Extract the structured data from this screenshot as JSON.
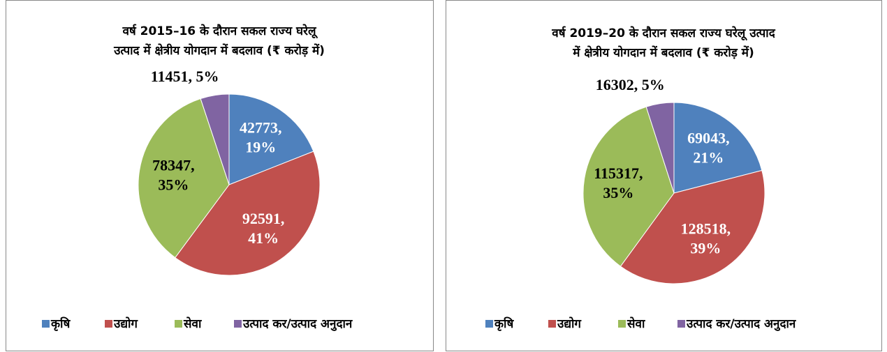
{
  "chart_data": [
    {
      "type": "pie",
      "title": [
        "वर्ष 2015–16 के दौरान सकल राज्य घरेलू",
        "उत्पाद में क्षेत्रीय योगदान में बदलाव (₹ करोड़ में)"
      ],
      "categories": [
        "कृषि",
        "उद्योग",
        "सेवा",
        "उत्पाद कर/उत्पाद अनुदान"
      ],
      "values": [
        42773,
        92591,
        78347,
        11451
      ],
      "value_labels": [
        "42773, 19%",
        "92591, 41%",
        "78347, 35%",
        "11451, 5%"
      ],
      "colors": [
        "#4f81bd",
        "#c0504d",
        "#9bbb59",
        "#8064a2"
      ],
      "legend": "bottom"
    },
    {
      "type": "pie",
      "title": [
        "वर्ष 2019–20 के दौरान सकल राज्य घरेलू उत्पाद",
        "में क्षेत्रीय योगदान में बदलाव (₹ करोड़ में)"
      ],
      "categories": [
        "कृषि",
        "उद्योग",
        "सेवा",
        "उत्पाद कर/उत्पाद अनुदान"
      ],
      "values": [
        69043,
        128518,
        115317,
        16302
      ],
      "value_labels": [
        "69043, 21%",
        "128518, 39%",
        "115317, 35%",
        "16302, 5%"
      ],
      "colors": [
        "#4f81bd",
        "#c0504d",
        "#9bbb59",
        "#8064a2"
      ],
      "legend": "bottom"
    }
  ]
}
